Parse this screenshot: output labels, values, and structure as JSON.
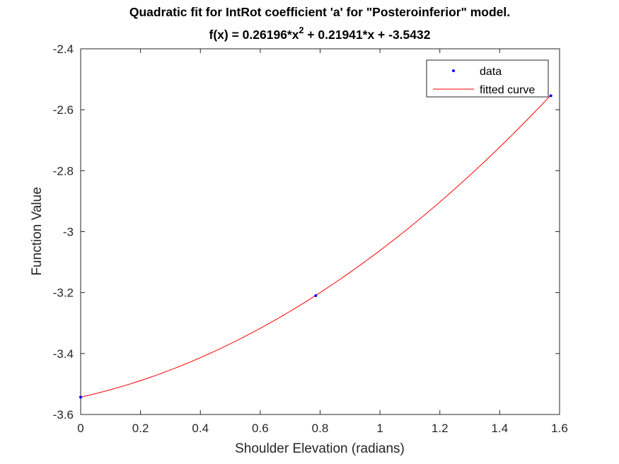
{
  "chart_data": {
    "type": "line",
    "title_line1": "Quadratic fit for IntRot coefficient 'a' for \"Posteroinferior\" model.",
    "title_line2_prefix": "f(x) = 0.26196*x",
    "title_line2_exponent": "2",
    "title_line2_suffix": " + 0.21941*x + -3.5432",
    "xlabel": "Shoulder Elevation (radians)",
    "ylabel": "Function Value",
    "xlim": [
      0,
      1.6
    ],
    "ylim": [
      -3.6,
      -2.4
    ],
    "xticks": [
      0,
      0.2,
      0.4,
      0.6,
      0.8,
      1,
      1.2,
      1.4,
      1.6
    ],
    "xtick_labels": [
      "0",
      "0.2",
      "0.4",
      "0.6",
      "0.8",
      "1",
      "1.2",
      "1.4",
      "1.6"
    ],
    "yticks": [
      -3.6,
      -3.4,
      -3.2,
      -3,
      -2.8,
      -2.6,
      -2.4
    ],
    "ytick_labels": [
      "-3.6",
      "-3.4",
      "-3.2",
      "-3",
      "-2.8",
      "-2.6",
      "-2.4"
    ],
    "grid": false,
    "legend_position": "top-right",
    "series": [
      {
        "name": "data",
        "kind": "scatter",
        "color": "#0000ff",
        "x": [
          0,
          0.7854,
          1.5708
        ],
        "y": [
          -3.5432,
          -3.2102,
          -2.554
        ]
      },
      {
        "name": "fitted curve",
        "kind": "line",
        "color": "#ff0000",
        "coefficients": [
          0.26196,
          0.21941,
          -3.5432
        ],
        "x_range": [
          0,
          1.5708
        ]
      }
    ]
  }
}
